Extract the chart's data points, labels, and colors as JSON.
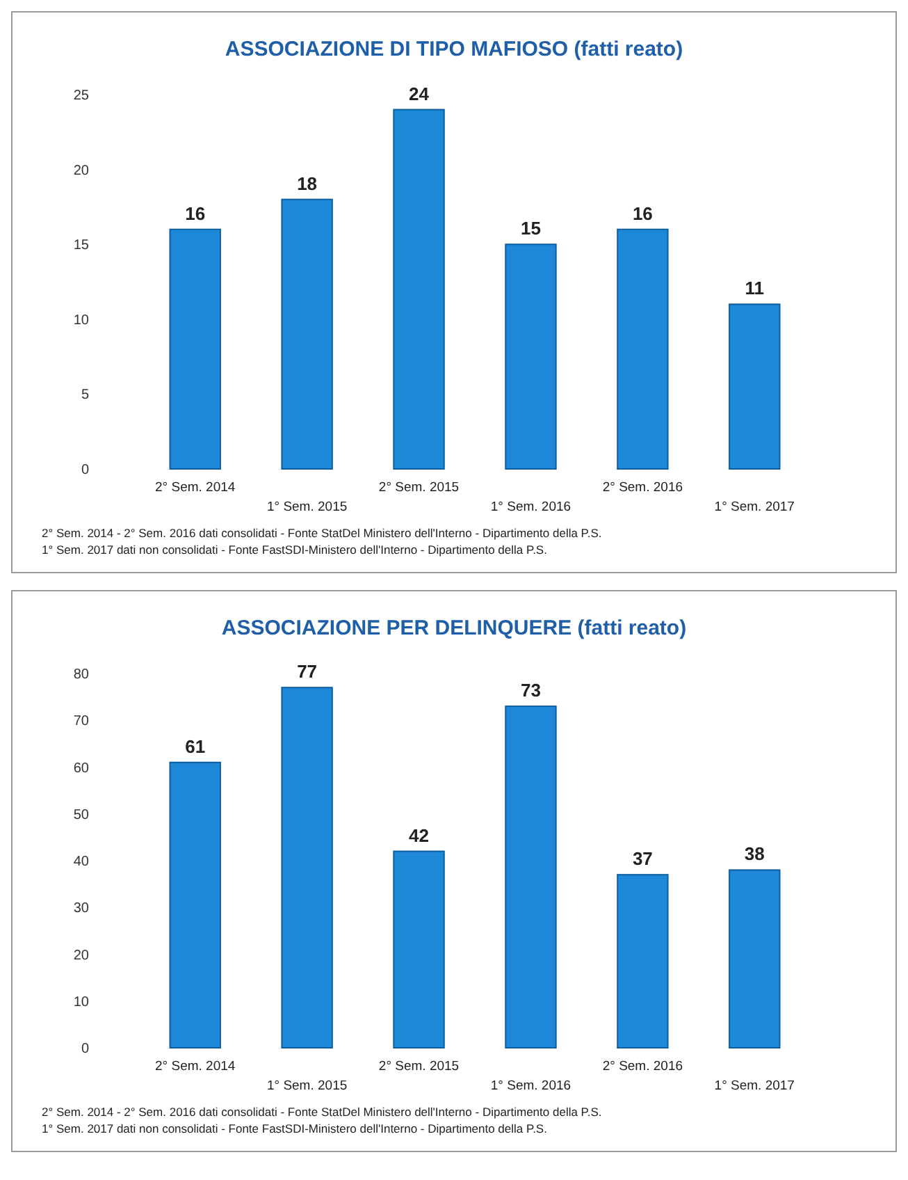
{
  "chart_data": [
    {
      "type": "bar",
      "title": "ASSOCIAZIONE DI TIPO MAFIOSO  (fatti reato)",
      "categories": [
        "2° Sem. 2014",
        "1° Sem. 2015",
        "2° Sem. 2015",
        "1° Sem. 2016",
        "2° Sem. 2016",
        "1° Sem. 2017"
      ],
      "values": [
        16,
        18,
        24,
        15,
        16,
        11
      ],
      "color": "#1e88d8",
      "ylim": [
        0,
        25
      ],
      "yticks": [
        0,
        5,
        10,
        15,
        20,
        25
      ],
      "data_labels": true,
      "annotations": [
        "2° Sem. 2014 - 2° Sem. 2016 dati consolidati - Fonte StatDel Ministero dell'Interno - Dipartimento della P.S.",
        "1° Sem. 2017 dati non consolidati - Fonte FastSDI-Ministero dell'Interno - Dipartimento della P.S."
      ]
    },
    {
      "type": "bar",
      "title": "ASSOCIAZIONE PER DELINQUERE (fatti reato)",
      "categories": [
        "2° Sem. 2014",
        "1° Sem. 2015",
        "2° Sem. 2015",
        "1° Sem. 2016",
        "2° Sem. 2016",
        "1° Sem. 2017"
      ],
      "values": [
        61,
        77,
        42,
        73,
        37,
        38
      ],
      "color": "#1e88d8",
      "ylim": [
        0,
        80
      ],
      "yticks": [
        0,
        10,
        20,
        30,
        40,
        50,
        60,
        70,
        80
      ],
      "data_labels": true,
      "annotations": [
        "2° Sem. 2014 - 2° Sem. 2016 dati consolidati - Fonte StatDel Ministero dell'Interno - Dipartimento della P.S.",
        "1° Sem. 2017 dati non consolidati - Fonte FastSDI-Ministero dell'Interno - Dipartimento della P.S."
      ]
    }
  ]
}
